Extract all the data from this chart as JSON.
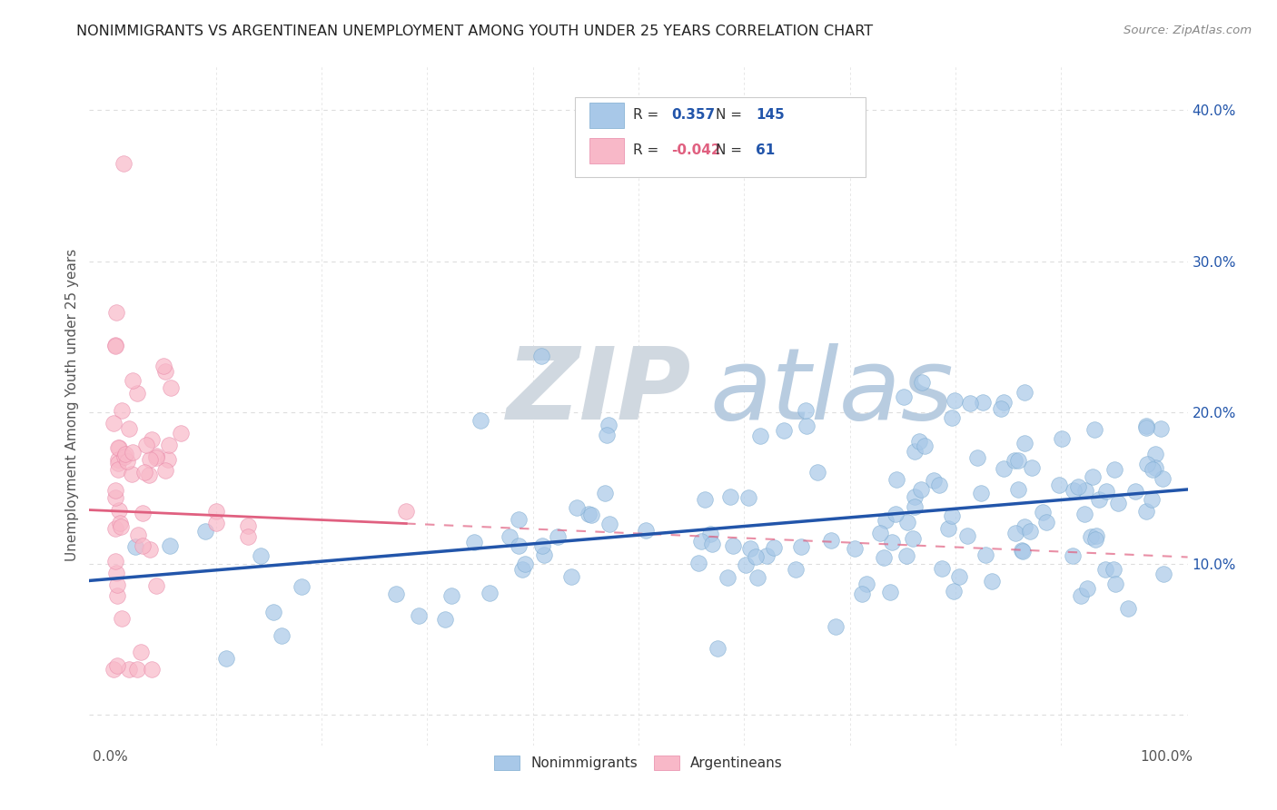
{
  "title": "NONIMMIGRANTS VS ARGENTINEAN UNEMPLOYMENT AMONG YOUTH UNDER 25 YEARS CORRELATION CHART",
  "source": "Source: ZipAtlas.com",
  "ylabel": "Unemployment Among Youth under 25 years",
  "xlim": [
    -0.02,
    1.02
  ],
  "ylim": [
    -0.02,
    0.43
  ],
  "x_ticks": [
    0.0,
    0.1,
    0.2,
    0.3,
    0.4,
    0.5,
    0.6,
    0.7,
    0.8,
    0.9,
    1.0
  ],
  "x_tick_labels": [
    "0.0%",
    "",
    "",
    "",
    "",
    "",
    "",
    "",
    "",
    "",
    "100.0%"
  ],
  "y_ticks_right": [
    0.1,
    0.2,
    0.3,
    0.4
  ],
  "y_tick_labels_right": [
    "10.0%",
    "20.0%",
    "30.0%",
    "40.0%"
  ],
  "blue_color": "#a8c8e8",
  "blue_edge_color": "#7aaad0",
  "pink_color": "#f8b8c8",
  "pink_edge_color": "#e888a8",
  "blue_line_color": "#2255aa",
  "pink_line_color": "#e06080",
  "blue_R": 0.357,
  "blue_N": 145,
  "pink_R": -0.042,
  "pink_N": 61,
  "watermark_zip": "ZIP",
  "watermark_atlas": "atlas",
  "watermark_color_zip": "#d0d8e0",
  "watermark_color_atlas": "#b8cce0",
  "background_color": "#ffffff",
  "grid_color": "#dddddd",
  "blue_intercept": 0.09,
  "blue_slope": 0.058,
  "pink_intercept": 0.135,
  "pink_slope": -0.03,
  "legend_text_color": "#333333",
  "legend_num_color": "#2255aa",
  "right_axis_color": "#2255aa"
}
